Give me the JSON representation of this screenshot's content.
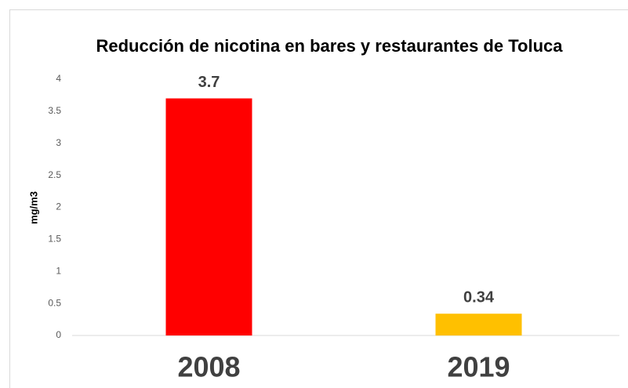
{
  "chart_data": {
    "type": "bar",
    "title": "Reducción de nicotina en bares y restaurantes de Toluca",
    "y_label": "mg/m3",
    "categories": [
      "2008",
      "2019"
    ],
    "values": [
      3.7,
      0.34
    ],
    "colors": [
      "#ff0000",
      "#ffc000"
    ],
    "ylim": [
      0,
      4
    ],
    "yticks": [
      0,
      0.5,
      1,
      1.5,
      2,
      2.5,
      3,
      3.5,
      4
    ],
    "grid": false
  }
}
